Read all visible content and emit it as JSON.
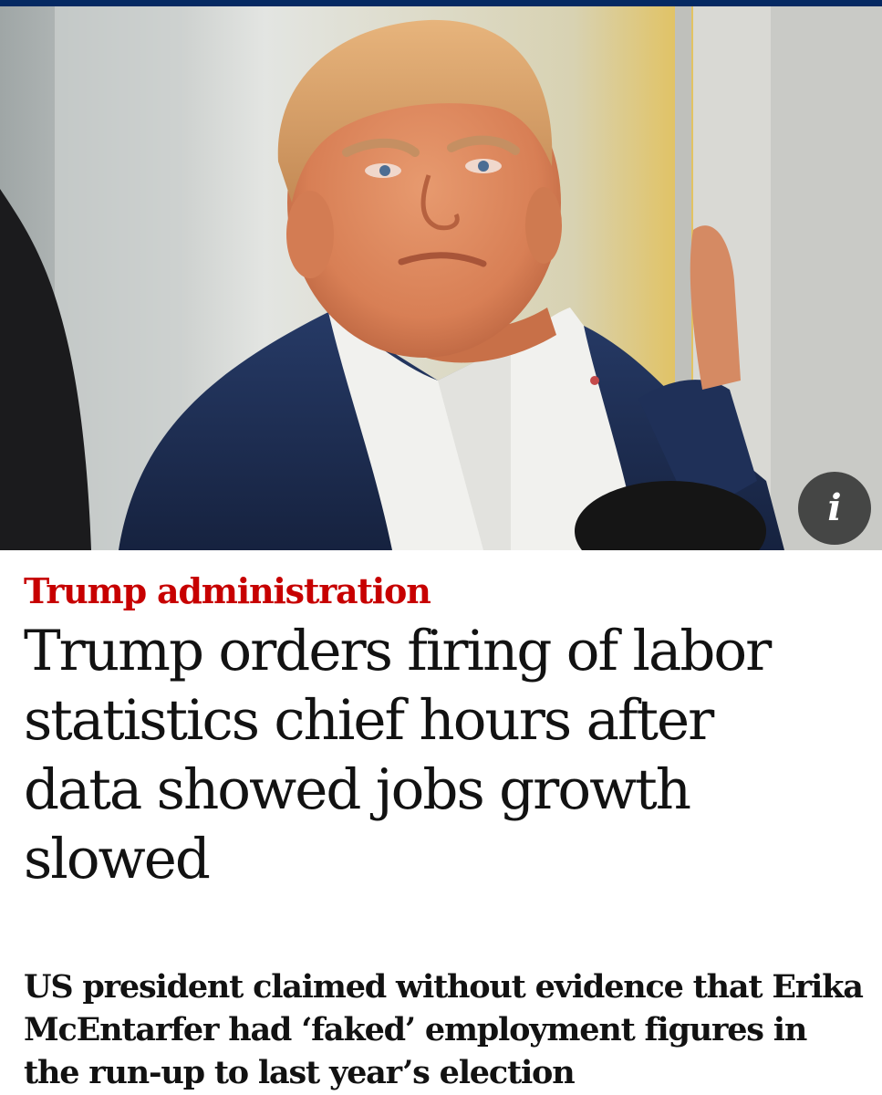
{
  "article": {
    "kicker": "Trump administration",
    "headline": "Trump orders firing of labor statistics chief hours after data showed jobs growth slowed",
    "standfirst": "US president claimed without evidence that Erika McEntarfer had ‘faked’ employment figures in the run-up to last year’s election"
  },
  "image": {
    "info_label": "i",
    "info_icon": "info-icon"
  },
  "colors": {
    "brand_bar": "#052962",
    "kicker": "#c70000",
    "headline": "#121212"
  }
}
